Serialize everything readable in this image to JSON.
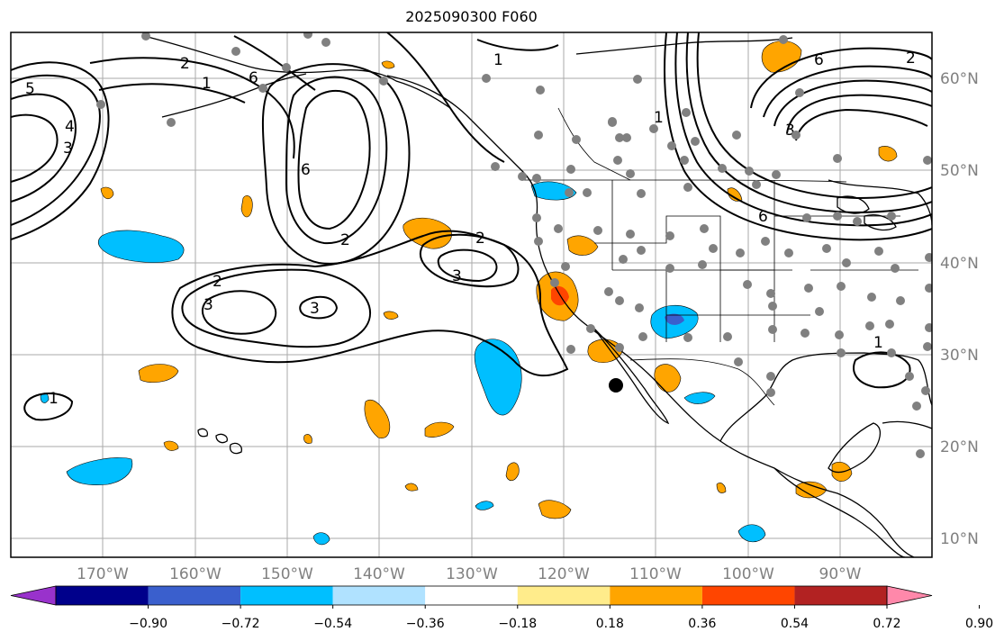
{
  "title": "2025090300 F060",
  "map": {
    "lon_range": [
      -180,
      -80
    ],
    "lat_range": [
      8,
      65
    ],
    "lon_labels": [
      "170°W",
      "160°W",
      "150°W",
      "140°W",
      "130°W",
      "120°W",
      "110°W",
      "100°W",
      "90°W"
    ],
    "lat_labels": [
      "60°N",
      "50°N",
      "40°N",
      "30°N",
      "20°N",
      "10°N"
    ],
    "grid": true
  },
  "colorbar": {
    "ticks": [
      "−0.90",
      "−0.72",
      "−0.54",
      "−0.36",
      "−0.18",
      "0.18",
      "0.36",
      "0.54",
      "0.72",
      "0.90"
    ],
    "colors": [
      "#9932cc",
      "#00008b",
      "#3a5fcd",
      "#00bfff",
      "#b0e2ff",
      "#ffffff",
      "#ffec8b",
      "#ffa500",
      "#ff4500",
      "#b22222",
      "#ff88aa"
    ],
    "extend": "both"
  },
  "contour_labels": [
    "5",
    "4",
    "3",
    "2",
    "1",
    "6",
    "6",
    "2",
    "3",
    "2",
    "3",
    "3",
    "1",
    "1",
    "1",
    "6",
    "2",
    "1",
    "2",
    "6",
    "3"
  ],
  "station_marker_color": "#808080",
  "highlight_marker_color": "#000000"
}
